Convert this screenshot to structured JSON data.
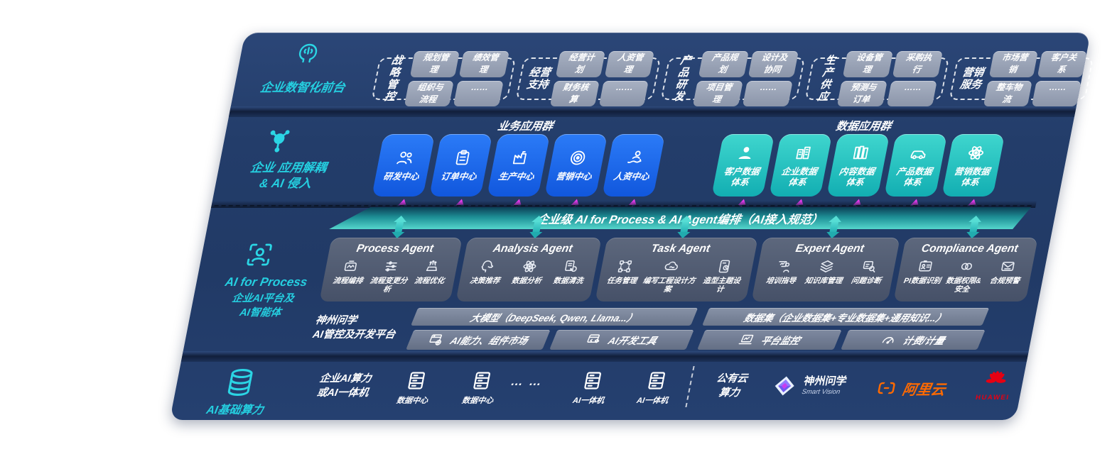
{
  "colors": {
    "accent_cyan": "#2bd5e4",
    "accent_magenta": "#ea3df2",
    "tile_blue": "#1c6cee",
    "tile_teal": "#2cc6c2",
    "orchestration_teal": "#55d6cc",
    "aliyun_orange": "#ff6a00",
    "huawei_red": "#e60012",
    "panel_navy": "#233d6a"
  },
  "front_office": {
    "icon": "brain-head-icon",
    "label": "企业数智化前台",
    "groups": [
      {
        "name": "战略管控",
        "chips": [
          "规划管理",
          "绩效管理",
          "组织与流程",
          "……"
        ]
      },
      {
        "name": "经营支持",
        "chips": [
          "经营计划",
          "人资管理",
          "财务核算",
          "……"
        ]
      },
      {
        "name": "产品研发",
        "chips": [
          "产品规划",
          "设计及协同",
          "项目管理",
          "……"
        ]
      },
      {
        "name": "生产供应",
        "chips": [
          "设备管理",
          "采购执行",
          "预测与订单",
          "……"
        ]
      },
      {
        "name": "营销服务",
        "chips": [
          "市场营销",
          "客户关系",
          "整车物流",
          "……"
        ]
      }
    ]
  },
  "decouple_layer": {
    "icon": "molecule-icon",
    "label": "企业 应用解耦\n& AI 侵入",
    "business_group_title": "业务应用群",
    "data_group_title": "数据应用群",
    "business_apps": [
      {
        "icon": "people-icon",
        "label": "研发中心"
      },
      {
        "icon": "clipboard-icon",
        "label": "订单中心"
      },
      {
        "icon": "factory-icon",
        "label": "生产中心"
      },
      {
        "icon": "target-icon",
        "label": "营销中心"
      },
      {
        "icon": "person-trend-icon",
        "label": "人资中心"
      }
    ],
    "data_apps": [
      {
        "icon": "customer-icon",
        "label": "客户数据\n体系"
      },
      {
        "icon": "building-icon",
        "label": "企业数据\n体系"
      },
      {
        "icon": "books-icon",
        "label": "内容数据\n体系"
      },
      {
        "icon": "car-icon",
        "label": "产品数据\n体系"
      },
      {
        "icon": "atom-icon",
        "label": "营销数据\n体系"
      }
    ]
  },
  "ai_layer": {
    "icon": "person-scan-icon",
    "label_en": "AI for Process",
    "label_zh": "企业AI平台及\nAI智能体",
    "orchestration_bar": "企业级 AI for Process & AI Agent编排（AI接入规范）",
    "agents": [
      {
        "title": "Process Agent",
        "items": [
          {
            "icon": "workflow-icon",
            "label": "流程编排"
          },
          {
            "icon": "sliders-icon",
            "label": "流程变更分析"
          },
          {
            "icon": "optimize-icon",
            "label": "流程优化"
          }
        ]
      },
      {
        "title": "Analysis Agent",
        "items": [
          {
            "icon": "decision-icon",
            "label": "决策推荐"
          },
          {
            "icon": "atom-icon",
            "label": "数据分析"
          },
          {
            "icon": "dataclean-icon",
            "label": "数据清洗"
          }
        ]
      },
      {
        "title": "Task Agent",
        "items": [
          {
            "icon": "tasknodes-icon",
            "label": "任务管理"
          },
          {
            "icon": "cloudpen-icon",
            "label": "编写工程设计方案"
          },
          {
            "icon": "designcheck-icon",
            "label": "造型主题设计"
          }
        ]
      },
      {
        "title": "Expert Agent",
        "items": [
          {
            "icon": "training-icon",
            "label": "培训指导"
          },
          {
            "icon": "layers-icon",
            "label": "知识库管理"
          },
          {
            "icon": "diagnose-icon",
            "label": "问题诊断"
          }
        ]
      },
      {
        "title": "Compliance Agent",
        "items": [
          {
            "icon": "idcard-icon",
            "label": "PI数据识别"
          },
          {
            "icon": "rings-icon",
            "label": "数据权限&\n安全"
          },
          {
            "icon": "envelope-icon",
            "label": "合规预警"
          }
        ]
      }
    ]
  },
  "platform": {
    "label": "神州问学\nAI管控及开发平台",
    "model_bar": "大模型（DeepSeek, Qwen, Llama...）",
    "dataset_bar": "数据集（企业数据集+专业数据集+通用知识...）",
    "left_tools": [
      {
        "icon": "market-icon",
        "label": "AI能力、组件市场"
      },
      {
        "icon": "devtools-icon",
        "label": "AI开发工具"
      }
    ],
    "right_tools": [
      {
        "icon": "monitor-icon",
        "label": "平台监控"
      },
      {
        "icon": "gauge-icon",
        "label": "计费/计量"
      }
    ]
  },
  "infra": {
    "icon": "database-icon",
    "label": "AI基础算力",
    "enterprise_label": "企业AI算力\n或AI一体机",
    "servers": [
      {
        "icon": "server-icon",
        "label": "数据中心"
      },
      {
        "icon": "server-icon",
        "label": "数据中心"
      },
      {
        "icon": "server-icon",
        "label": "AI一体机"
      },
      {
        "icon": "server-icon",
        "label": "AI一体机"
      }
    ],
    "ellipsis": "… …",
    "public_cloud_label": "公有云\n算力",
    "logos": {
      "smartvision": {
        "icon": "smartvision-icon",
        "name": "神州问学",
        "sub": "Smart Vision"
      },
      "aliyun": {
        "icon": "aliyun-icon",
        "text": "阿里云"
      },
      "huawei": {
        "icon": "huawei-icon",
        "text": "HUAWEI"
      }
    }
  }
}
